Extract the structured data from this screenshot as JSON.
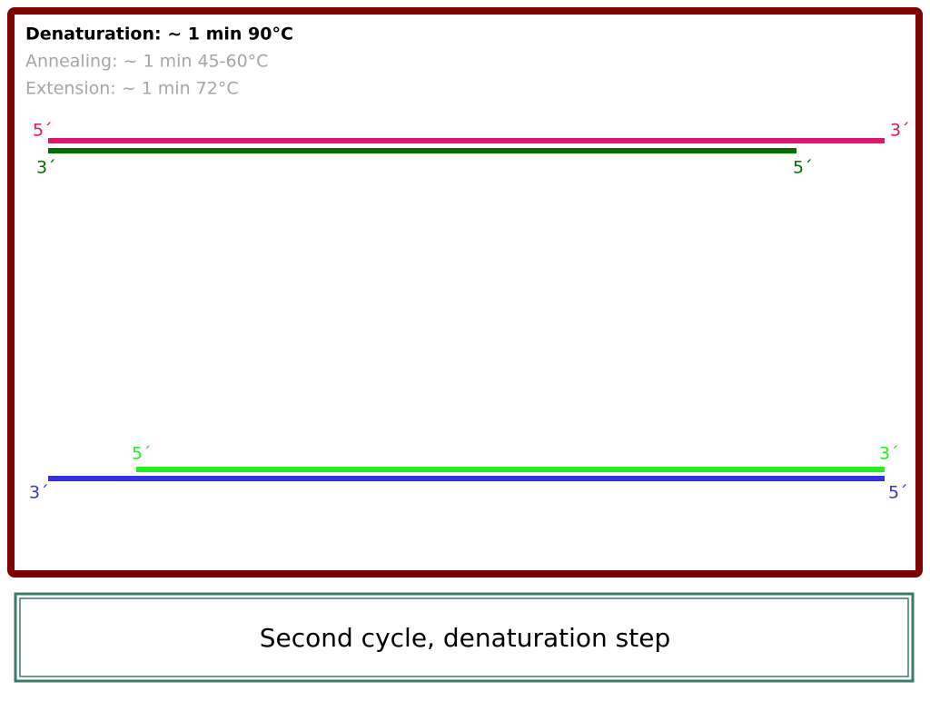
{
  "steps": [
    "Denaturation: ~ 1 min 90°C",
    "Annealing: ~ 1 min 45-60°C",
    "Extension: ~ 1 min 72°C"
  ],
  "strands": [
    {
      "left": "5´",
      "right": "3´"
    },
    {
      "left": "3´",
      "right": "5´"
    },
    {
      "left": "5´",
      "right": "3´"
    },
    {
      "left": "3´",
      "right": "5´"
    }
  ],
  "caption": "Second cycle, denaturation step"
}
